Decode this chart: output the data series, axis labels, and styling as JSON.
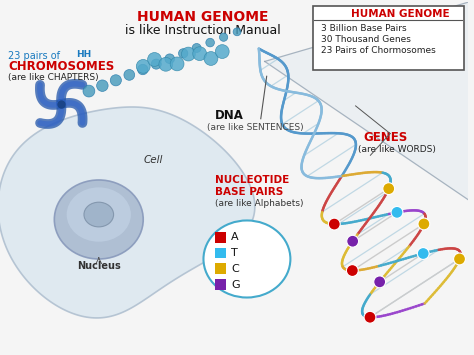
{
  "title_line1": "HUMAN GENOME",
  "title_line2": "is like Instruction Manual",
  "title_color": "#cc0000",
  "title_line2_color": "#111111",
  "bg_color": "#f5f5f5",
  "box_title": "HUMAN GENOME",
  "box_title_color": "#cc0000",
  "box_facts": [
    "3 Billion Base Pairs",
    "30 Thousand Genes",
    "23 Pairs of Chormosomes"
  ],
  "box_fact_color": "#222222",
  "chrom_label1": "23 pairs of",
  "chrom_label2": "CHROMOSOMES",
  "chrom_label3": "(are like CHAPTERS)",
  "chrom_color": "#1a7abf",
  "chrom_red": "#cc0000",
  "dna_label1": "DNA",
  "dna_label2": "(are like SENTENCES)",
  "dna_label_color": "#111111",
  "genes_label1": "GENES",
  "genes_label2": "(are like WORDS)",
  "genes_color": "#cc0000",
  "genes_label2_color": "#222222",
  "nucleotide_label1": "NUCLEOTIDE",
  "nucleotide_label2": "BASE PAIRS",
  "nucleotide_label3": "(are like Alphabets)",
  "nucleotide_color": "#cc0000",
  "cell_label": "Cell",
  "nucleus_label": "Nucleus",
  "bases": [
    "A",
    "T",
    "C",
    "G"
  ],
  "base_colors": [
    "#cc0000",
    "#33bbee",
    "#ddaa00",
    "#7722aa"
  ],
  "cell_fill": "#dde8f0",
  "cell_edge": "#b0c0d0",
  "nucleus_fill": "#aabbd0",
  "nucleus_edge": "#8899bb",
  "nucleus_inner_fill": "#c5d5e8",
  "helix_color1": "#4488cc",
  "helix_color2": "#88aacc",
  "triangle_fill": "#d0e0ec",
  "triangle_edge": "#8899aa",
  "legend_edge": "#44aacc",
  "zoom_line_color": "#8899aa"
}
